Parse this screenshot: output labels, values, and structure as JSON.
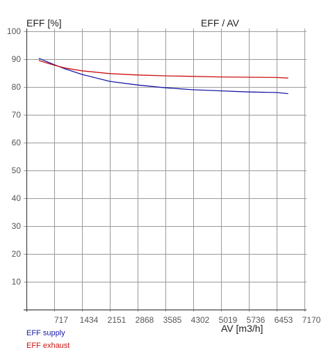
{
  "chart_data": {
    "type": "line",
    "title": "EFF / AV",
    "ylabel": "EFF [%]",
    "xlabel": "AV [m3/h]",
    "xlim": [
      0,
      7170
    ],
    "ylim": [
      0,
      100
    ],
    "x_ticks": [
      717,
      1434,
      2151,
      2868,
      3585,
      4302,
      5019,
      5736,
      6453,
      7170
    ],
    "y_ticks": [
      10,
      20,
      30,
      40,
      50,
      60,
      70,
      80,
      90,
      100
    ],
    "grid": true,
    "legend_position": "bottom-left",
    "series": [
      {
        "name": "EFF supply",
        "color": "#1a1aa8",
        "x": [
          320,
          717,
          1000,
          1434,
          2151,
          2868,
          3585,
          4302,
          5019,
          5736,
          6453,
          6750
        ],
        "y": [
          90.3,
          88.0,
          86.5,
          84.5,
          82.0,
          80.7,
          79.7,
          79.0,
          78.6,
          78.2,
          78.0,
          77.6
        ]
      },
      {
        "name": "EFF exhaust",
        "color": "#cc1111",
        "x": [
          320,
          717,
          1000,
          1434,
          2151,
          2868,
          3585,
          4302,
          5019,
          5736,
          6453,
          6750
        ],
        "y": [
          89.5,
          87.8,
          86.8,
          85.8,
          84.8,
          84.3,
          84.0,
          83.8,
          83.6,
          83.5,
          83.4,
          83.2
        ]
      }
    ]
  }
}
